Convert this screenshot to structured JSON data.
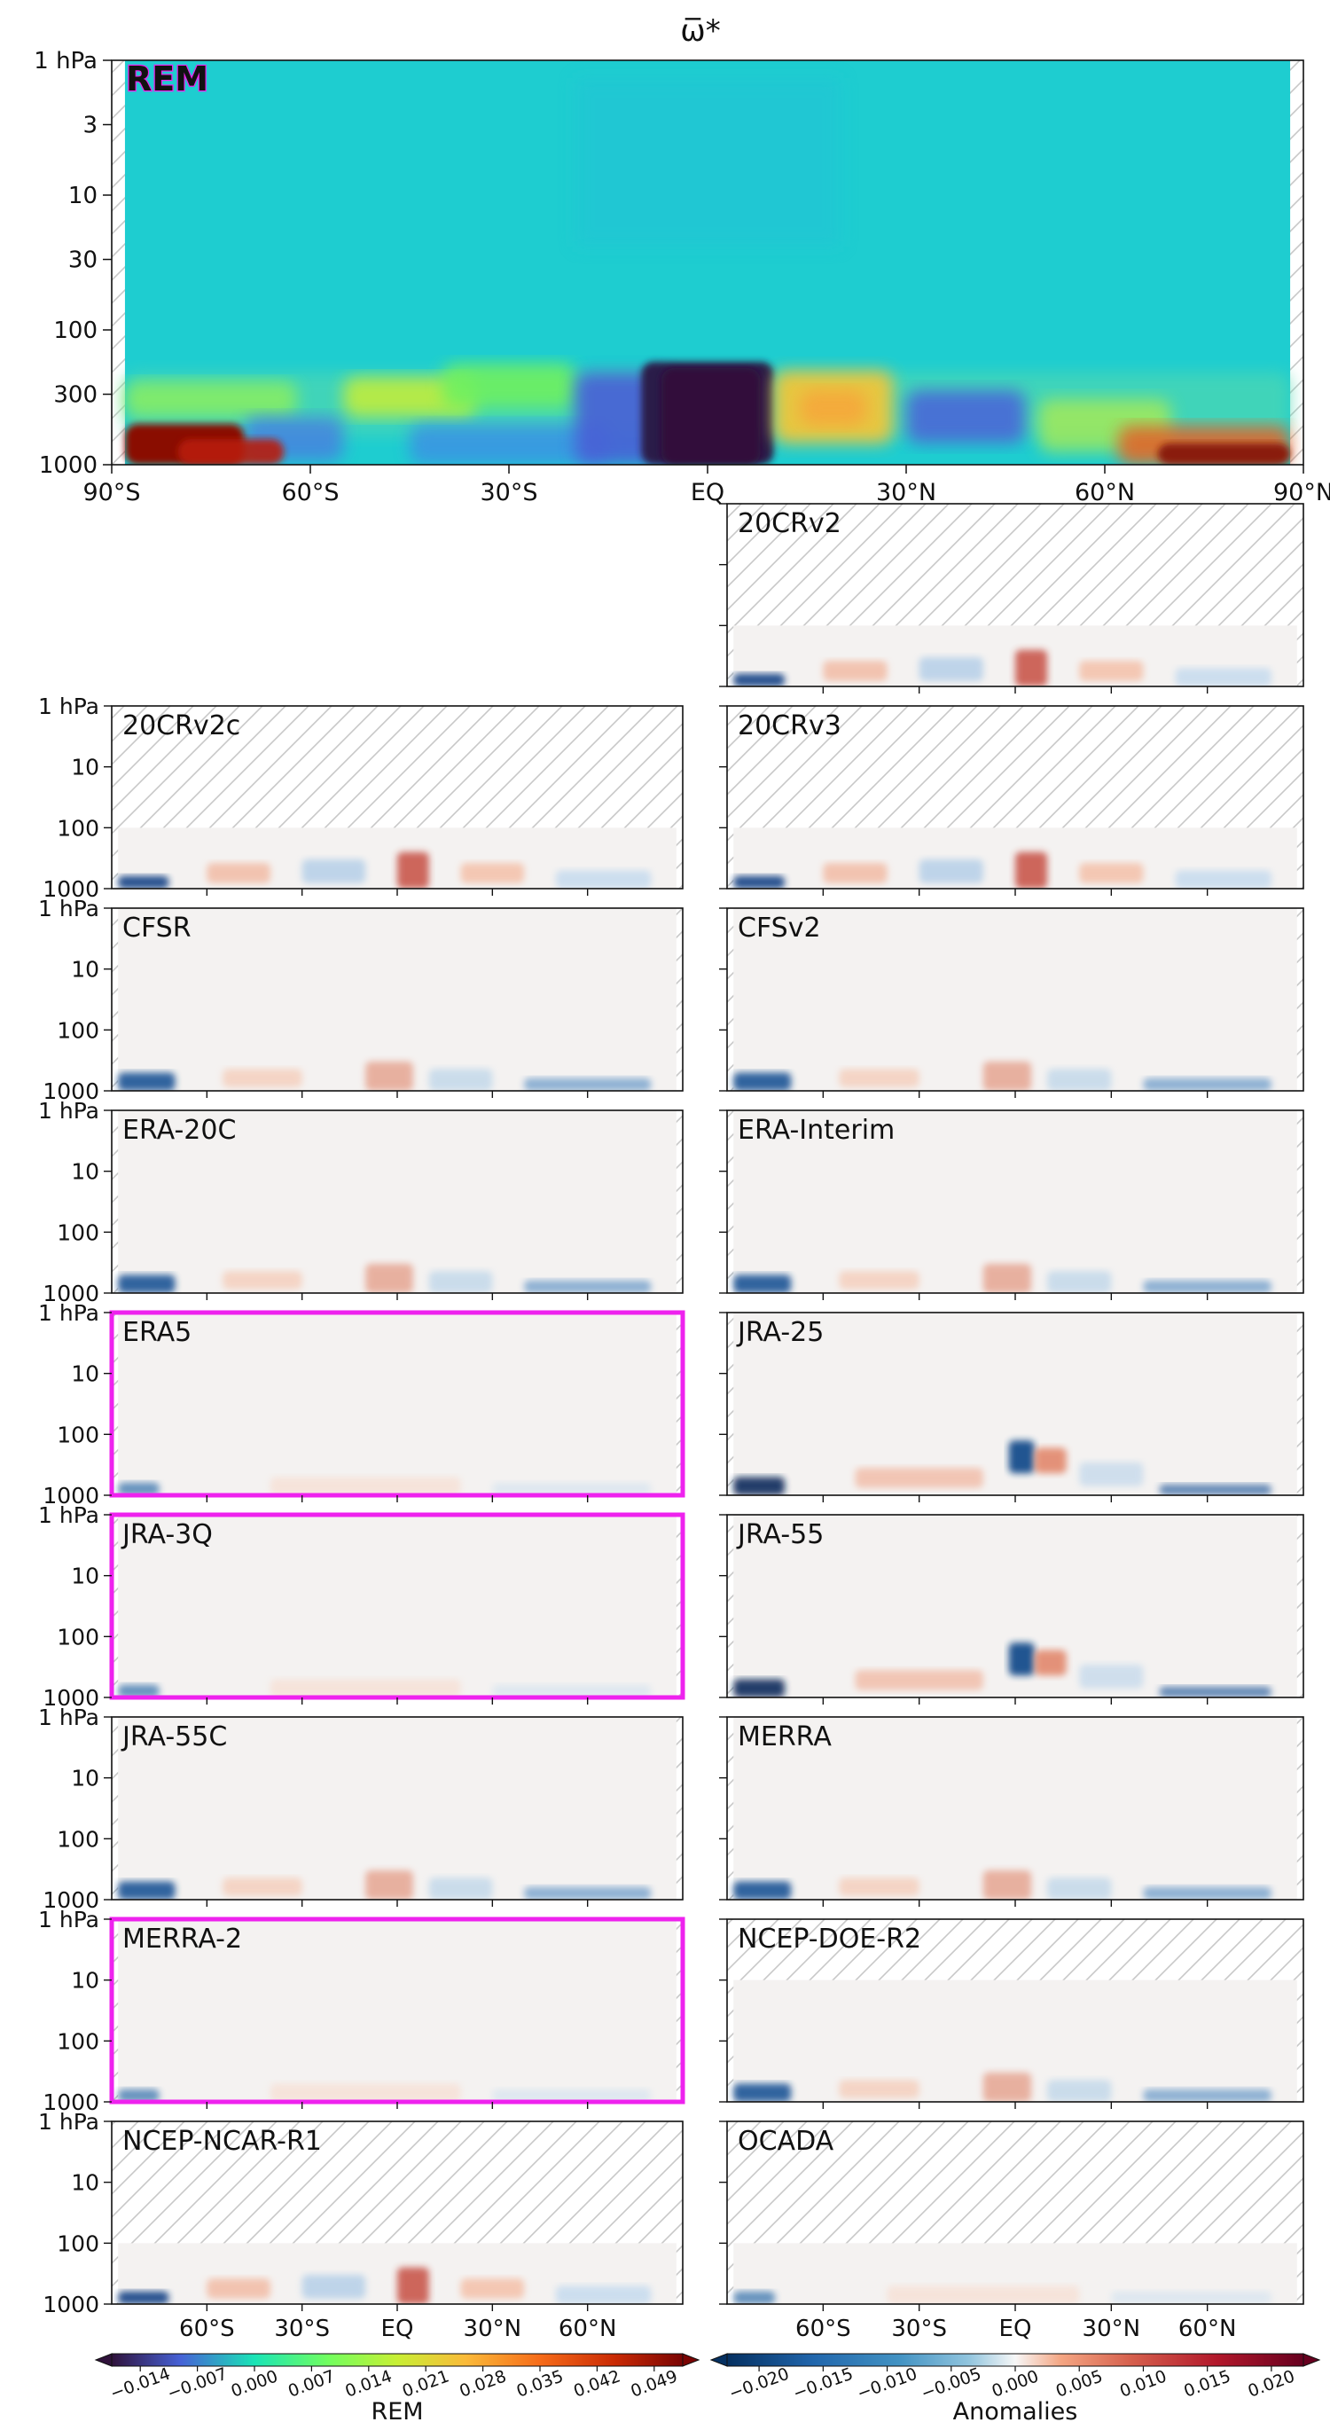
{
  "chart_data": {
    "type": "heatmap",
    "title": "ω̅*",
    "xlim": [
      -90,
      90
    ],
    "ylim_hPa": [
      1000,
      1
    ],
    "y_scale": "log",
    "main_panel": {
      "label": "REM",
      "y_ticks": [
        "1 hPa",
        "3",
        "10",
        "30",
        "100",
        "300",
        "1000"
      ],
      "x_ticks": [
        "90°S",
        "60°S",
        "30°S",
        "EQ",
        "30°N",
        "60°N",
        "90°N"
      ]
    },
    "small_y_ticks": [
      "1 hPa",
      "10",
      "100",
      "1000"
    ],
    "small_x_ticks": [
      "60°S",
      "30°S",
      "EQ",
      "30°N",
      "60°N"
    ],
    "panels": [
      {
        "label": "20CRv2",
        "col": 1,
        "row": 0,
        "top_hPa": 100,
        "highlight": false,
        "show_y": false
      },
      {
        "label": "20CRv2c",
        "col": 0,
        "row": 1,
        "top_hPa": 100,
        "highlight": false,
        "show_y": true
      },
      {
        "label": "20CRv3",
        "col": 1,
        "row": 1,
        "top_hPa": 100,
        "highlight": false,
        "show_y": false
      },
      {
        "label": "CFSR",
        "col": 0,
        "row": 2,
        "top_hPa": 1,
        "highlight": false,
        "show_y": true
      },
      {
        "label": "CFSv2",
        "col": 1,
        "row": 2,
        "top_hPa": 1,
        "highlight": false,
        "show_y": false
      },
      {
        "label": "ERA-20C",
        "col": 0,
        "row": 3,
        "top_hPa": 1,
        "highlight": false,
        "show_y": true
      },
      {
        "label": "ERA-Interim",
        "col": 1,
        "row": 3,
        "top_hPa": 1,
        "highlight": false,
        "show_y": false
      },
      {
        "label": "ERA5",
        "col": 0,
        "row": 4,
        "top_hPa": 1,
        "highlight": true,
        "show_y": true
      },
      {
        "label": "JRA-25",
        "col": 1,
        "row": 4,
        "top_hPa": 1,
        "highlight": false,
        "show_y": false
      },
      {
        "label": "JRA-3Q",
        "col": 0,
        "row": 5,
        "top_hPa": 1,
        "highlight": true,
        "show_y": true
      },
      {
        "label": "JRA-55",
        "col": 1,
        "row": 5,
        "top_hPa": 1,
        "highlight": false,
        "show_y": false
      },
      {
        "label": "JRA-55C",
        "col": 0,
        "row": 6,
        "top_hPa": 1,
        "highlight": false,
        "show_y": true
      },
      {
        "label": "MERRA",
        "col": 1,
        "row": 6,
        "top_hPa": 1,
        "highlight": false,
        "show_y": false
      },
      {
        "label": "MERRA-2",
        "col": 0,
        "row": 7,
        "top_hPa": 1,
        "highlight": true,
        "show_y": true
      },
      {
        "label": "NCEP-DOE-R2",
        "col": 1,
        "row": 7,
        "top_hPa": 10,
        "highlight": false,
        "show_y": false
      },
      {
        "label": "NCEP-NCAR-R1",
        "col": 0,
        "row": 8,
        "top_hPa": 100,
        "highlight": false,
        "show_y": true
      },
      {
        "label": "OCADA",
        "col": 1,
        "row": 8,
        "top_hPa": 100,
        "highlight": false,
        "show_y": false
      }
    ],
    "colorbars": [
      {
        "label": "REM",
        "cmap": "turbo",
        "ticks": [
          "−0.014",
          "−0.007",
          "0.000",
          "0.007",
          "0.014",
          "0.021",
          "0.028",
          "0.035",
          "0.042",
          "0.049"
        ],
        "range": [
          -0.0175,
          0.0525
        ]
      },
      {
        "label": "Anomalies",
        "cmap": "RdBu_r",
        "ticks": [
          "−0.020",
          "−0.015",
          "−0.010",
          "−0.005",
          "0.000",
          "0.005",
          "0.010",
          "0.015",
          "0.020"
        ],
        "range": [
          -0.0225,
          0.0225
        ]
      }
    ],
    "colors": {
      "highlight": "#ee22ee",
      "hatch": "#c8c8c8",
      "rem_background": "#1ecdd0"
    }
  }
}
